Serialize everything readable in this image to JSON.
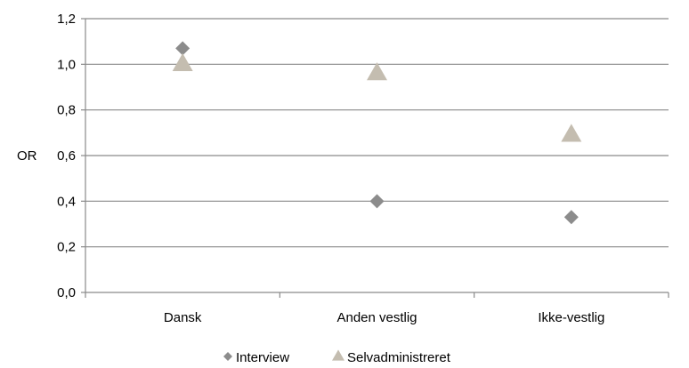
{
  "chart_data": {
    "type": "scatter",
    "categories": [
      "Dansk",
      "Anden vestlig",
      "Ikke-vestlig"
    ],
    "series": [
      {
        "name": "Interview",
        "values": [
          1.07,
          0.4,
          0.33
        ],
        "marker": "diamond",
        "color": "#8c8c8c"
      },
      {
        "name": "Selvadministreret",
        "values": [
          1.0,
          0.96,
          0.69
        ],
        "marker": "triangle",
        "color": "#c4bdb0"
      }
    ],
    "ylabel": "OR",
    "ylim": [
      0,
      1.2
    ],
    "yticks": [
      "0,0",
      "0,2",
      "0,4",
      "0,6",
      "0,8",
      "1,0",
      "1,2"
    ],
    "ytick_values": [
      0,
      0.2,
      0.4,
      0.6,
      0.8,
      1.0,
      1.2
    ],
    "grid": true,
    "legend_position": "bottom"
  }
}
